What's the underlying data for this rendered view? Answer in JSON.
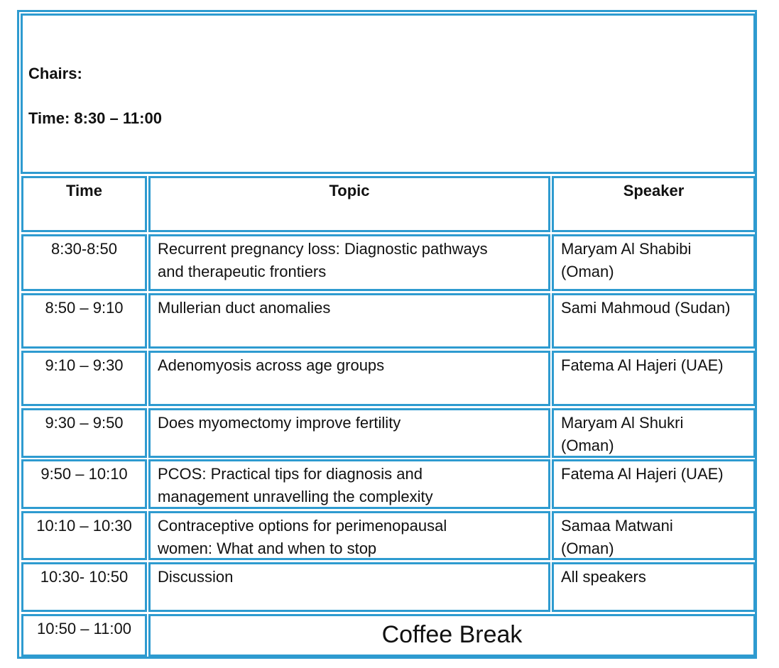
{
  "header": {
    "chairs_label": "Chairs:",
    "time_label": "Time: 8:30 – 11:00"
  },
  "columns": {
    "time": "Time",
    "topic": "Topic",
    "speaker": "Speaker"
  },
  "rows": [
    {
      "time": "8:30-8:50",
      "topic_lines": [
        "Recurrent pregnancy loss: Diagnostic pathways",
        "and therapeutic frontiers"
      ],
      "speaker_lines": [
        "Maryam Al Shabibi",
        "(Oman)"
      ]
    },
    {
      "time": "8:50 – 9:10",
      "topic_lines": [
        "Mullerian duct anomalies",
        ""
      ],
      "speaker_lines": [
        "Sami Mahmoud (Sudan)",
        ""
      ]
    },
    {
      "time": "9:10 – 9:30",
      "topic_lines": [
        "Adenomyosis across age groups",
        ""
      ],
      "speaker_lines": [
        "Fatema Al Hajeri (UAE)",
        ""
      ]
    },
    {
      "time": "9:30 – 9:50",
      "topic_lines": [
        "Does myomectomy improve fertility",
        ""
      ],
      "speaker_lines": [
        "Maryam Al Shukri",
        "(Oman)"
      ]
    },
    {
      "time": "9:50 – 10:10",
      "topic_lines": [
        "PCOS: Practical tips for diagnosis and",
        "management unravelling the complexity"
      ],
      "speaker_lines": [
        "Fatema Al Hajeri (UAE)",
        ""
      ]
    },
    {
      "time": "10:10 – 10:30",
      "topic_lines": [
        "Contraceptive options for perimenopausal",
        "women: What and when to stop"
      ],
      "speaker_lines": [
        "Samaa Matwani",
        "(Oman)"
      ]
    },
    {
      "time": "10:30- 10:50",
      "topic_lines": [
        "Discussion",
        ""
      ],
      "speaker_lines": [
        "All speakers",
        ""
      ]
    }
  ],
  "break_row": {
    "time": "10:50 – 11:00",
    "label": "Coffee Break"
  },
  "colors": {
    "border": "#2e9bd0"
  }
}
